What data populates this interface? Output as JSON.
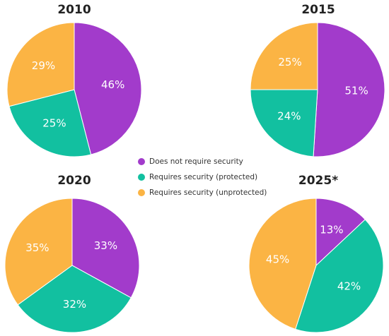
{
  "colors": {
    "does_not_require": "#A23BCB",
    "protected": "#12C0A0",
    "unprotected": "#FBB444"
  },
  "chart_data": {
    "type": "pie",
    "categories": [
      "Does not require security",
      "Requires security (protected)",
      "Requires security (unprotected)"
    ],
    "legend_placement": "center",
    "pies": [
      {
        "title": "2010",
        "values": [
          46,
          25,
          29
        ],
        "labels": [
          "46%",
          "25%",
          "29%"
        ]
      },
      {
        "title": "2015",
        "values": [
          51,
          24,
          25
        ],
        "labels": [
          "51%",
          "24%",
          "25%"
        ]
      },
      {
        "title": "2020",
        "values": [
          33,
          32,
          35
        ],
        "labels": [
          "33%",
          "32%",
          "35%"
        ]
      },
      {
        "title": "2025*",
        "values": [
          13,
          42,
          45
        ],
        "labels": [
          "13%",
          "42%",
          "45%"
        ]
      }
    ]
  }
}
